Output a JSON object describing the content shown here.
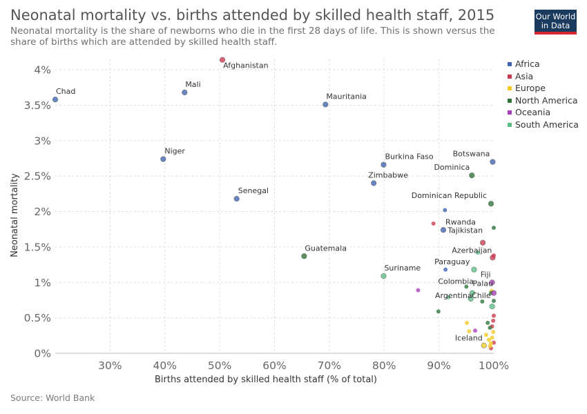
{
  "header": {
    "title": "Neonatal mortality vs. births attended by skilled health staff, 2015",
    "subtitle": "Neonatal mortality is the share of newborns who die in the first 28 days of life. This is shown versus the share of births which are attended by skilled health staff.",
    "logo_line1": "Our World",
    "logo_line2": "in Data"
  },
  "footer": {
    "source": "Source: World Bank"
  },
  "chart_data": {
    "type": "scatter",
    "title": "Neonatal mortality vs. births attended by skilled health staff, 2015",
    "xlabel": "Births attended by skilled health staff (% of total)",
    "ylabel": "Neonatal mortality",
    "xlim": [
      20,
      100
    ],
    "ylim": [
      0,
      4.2
    ],
    "x_ticks": [
      30,
      40,
      50,
      60,
      70,
      80,
      90,
      100
    ],
    "x_tick_labels": [
      "30%",
      "40%",
      "50%",
      "60%",
      "70%",
      "80%",
      "90%",
      "100%"
    ],
    "y_ticks": [
      0,
      0.5,
      1,
      1.5,
      2,
      2.5,
      3,
      3.5,
      4
    ],
    "y_tick_labels": [
      "0%",
      "0.5%",
      "1%",
      "1.5%",
      "2%",
      "2.5%",
      "3%",
      "3.5%",
      "4%"
    ],
    "grid": true,
    "legend_position": "right",
    "series": [
      {
        "name": "Africa",
        "color": "#3f63b0",
        "points": [
          {
            "x": 20.0,
            "y": 3.58,
            "label": "Chad"
          },
          {
            "x": 43.6,
            "y": 3.68,
            "label": "Mali"
          },
          {
            "x": 69.3,
            "y": 3.51,
            "label": "Mauritania"
          },
          {
            "x": 39.7,
            "y": 2.74,
            "label": "Niger"
          },
          {
            "x": 79.9,
            "y": 2.66,
            "label": "Burkina Faso"
          },
          {
            "x": 78.1,
            "y": 2.4,
            "label": "Zimbabwe"
          },
          {
            "x": 53.1,
            "y": 2.18,
            "label": "Senegal"
          },
          {
            "x": 99.8,
            "y": 2.7,
            "label": "Botswana"
          },
          {
            "x": 90.8,
            "y": 1.74,
            "label": "Rwanda"
          },
          {
            "x": 91.1,
            "y": 2.02
          },
          {
            "x": 91.2,
            "y": 1.18
          }
        ]
      },
      {
        "name": "Asia",
        "color": "#c9394d",
        "points": [
          {
            "x": 50.5,
            "y": 4.14,
            "label": "Afghanistan"
          },
          {
            "x": 98.0,
            "y": 1.56,
            "label": "Tajikistan"
          },
          {
            "x": 99.8,
            "y": 1.35,
            "label": "Azerbaijan"
          },
          {
            "x": 89.0,
            "y": 1.83
          },
          {
            "x": 100,
            "y": 1.38
          },
          {
            "x": 100,
            "y": 0.53
          },
          {
            "x": 99.9,
            "y": 0.46
          },
          {
            "x": 99.7,
            "y": 0.38
          },
          {
            "x": 100,
            "y": 0.15
          },
          {
            "x": 99.5,
            "y": 0.07
          }
        ]
      },
      {
        "name": "Europe",
        "color": "#f3c924",
        "points": [
          {
            "x": 98.2,
            "y": 0.11,
            "label": "Iceland"
          },
          {
            "x": 98.6,
            "y": 0.26
          },
          {
            "x": 99.1,
            "y": 0.19
          },
          {
            "x": 99.5,
            "y": 0.14
          },
          {
            "x": 99.7,
            "y": 0.22
          },
          {
            "x": 99.3,
            "y": 0.1
          },
          {
            "x": 99.9,
            "y": 0.3
          },
          {
            "x": 95.1,
            "y": 0.43
          },
          {
            "x": 95.5,
            "y": 0.31
          },
          {
            "x": 99.6,
            "y": 0.88
          }
        ]
      },
      {
        "name": "North America",
        "color": "#2b7337",
        "points": [
          {
            "x": 65.4,
            "y": 1.37,
            "label": "Guatemala"
          },
          {
            "x": 96.0,
            "y": 2.51,
            "label": "Dominica"
          },
          {
            "x": 99.5,
            "y": 2.11,
            "label": "Dominican Republic"
          },
          {
            "x": 100,
            "y": 1.77
          },
          {
            "x": 89.9,
            "y": 0.59
          },
          {
            "x": 97.9,
            "y": 0.73
          },
          {
            "x": 99.5,
            "y": 0.85
          },
          {
            "x": 100,
            "y": 0.74
          },
          {
            "x": 98.9,
            "y": 0.43
          },
          {
            "x": 99.3,
            "y": 0.36
          },
          {
            "x": 95.0,
            "y": 0.94
          }
        ]
      },
      {
        "name": "Oceania",
        "color": "#a53fb9",
        "points": [
          {
            "x": 86.2,
            "y": 0.89
          },
          {
            "x": 99.7,
            "y": 1.0,
            "label": "Fiji"
          },
          {
            "x": 100,
            "y": 0.85,
            "label": "Palau"
          },
          {
            "x": 96.6,
            "y": 0.32
          }
        ]
      },
      {
        "name": "South America",
        "color": "#5abf86",
        "points": [
          {
            "x": 79.9,
            "y": 1.09,
            "label": "Suriname"
          },
          {
            "x": 96.4,
            "y": 1.18,
            "label": "Paraguay"
          },
          {
            "x": 96.1,
            "y": 0.85,
            "label": "Colombia"
          },
          {
            "x": 95.8,
            "y": 0.77,
            "label": "Argentina"
          },
          {
            "x": 99.7,
            "y": 0.66,
            "label": "Chile"
          },
          {
            "x": 91.7,
            "y": 0.79
          },
          {
            "x": 97.1,
            "y": 1.42
          }
        ]
      }
    ]
  }
}
